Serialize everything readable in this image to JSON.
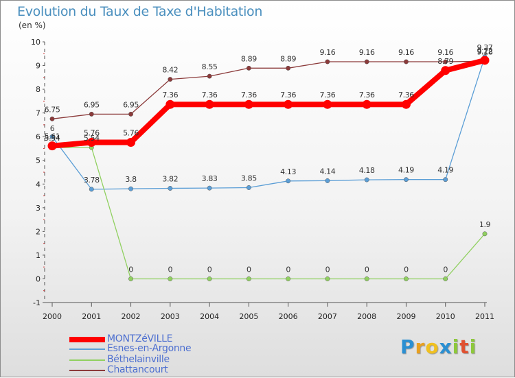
{
  "title": "Evolution du Taux de Taxe d'Habitation",
  "subtitle": "(en %)",
  "logo_text": "Proxiti",
  "colors": {
    "title": "#4a8fbe",
    "legend_text": "#4d6fd0",
    "logo_p": "#2a8fd2",
    "logo_r": "#e8a020",
    "logo_o": "#f0c020",
    "logo_x": "#2a8fd2",
    "logo_i": "#8ec83c",
    "logo_t": "#e05030",
    "logo_i2": "#8ec83c"
  },
  "chart_data": {
    "type": "line",
    "title": "Evolution du Taux de Taxe d'Habitation",
    "subtitle": "(en %)",
    "x": [
      "2000",
      "2001",
      "2002",
      "2003",
      "2004",
      "2005",
      "2006",
      "2007",
      "2008",
      "2009",
      "2010",
      "2011"
    ],
    "ylim": [
      -1,
      10
    ],
    "yticks": [
      "-1",
      "0",
      "1",
      "2",
      "3",
      "4",
      "5",
      "6",
      "7",
      "8",
      "9",
      "10"
    ],
    "grid": false,
    "legend_position": "bottom-left",
    "series": [
      {
        "name": "MONTZéVILLE",
        "color": "#ff0000",
        "values": [
          5.61,
          5.76,
          5.76,
          7.36,
          7.36,
          7.36,
          7.36,
          7.36,
          7.36,
          7.36,
          8.79,
          9.22
        ],
        "labels": [
          "5.61",
          "5.76",
          "5.76",
          "7.36",
          "7.36",
          "7.36",
          "7.36",
          "7.36",
          "7.36",
          "7.36",
          "8.79",
          "9.22"
        ]
      },
      {
        "name": "Esnes-en-Argonne",
        "color": "#5b9ed6",
        "values": [
          6,
          3.78,
          3.8,
          3.82,
          3.83,
          3.85,
          4.13,
          4.14,
          4.18,
          4.19,
          4.19,
          9.37
        ],
        "labels": [
          "6",
          "3.78",
          "3.8",
          "3.82",
          "3.83",
          "3.85",
          "4.13",
          "4.14",
          "4.18",
          "4.19",
          "4.19",
          "9.37"
        ]
      },
      {
        "name": "Béthelainville",
        "color": "#90d060",
        "values": [
          5.54,
          5.54,
          0,
          0,
          0,
          0,
          0,
          0,
          0,
          0,
          0,
          1.9
        ],
        "labels": [
          "5.54",
          "5.54",
          "0",
          "0",
          "0",
          "0",
          "0",
          "0",
          "0",
          "0",
          "0",
          "1.9"
        ]
      },
      {
        "name": "Chattancourt",
        "color": "#8b3a3a",
        "values": [
          6.75,
          6.95,
          6.95,
          8.42,
          8.55,
          8.89,
          8.89,
          9.16,
          9.16,
          9.16,
          9.16,
          9.18
        ],
        "labels": [
          "6.75",
          "6.95",
          "6.95",
          "8.42",
          "8.55",
          "8.89",
          "8.89",
          "9.16",
          "9.16",
          "9.16",
          "9.16",
          "9.18"
        ]
      }
    ]
  }
}
